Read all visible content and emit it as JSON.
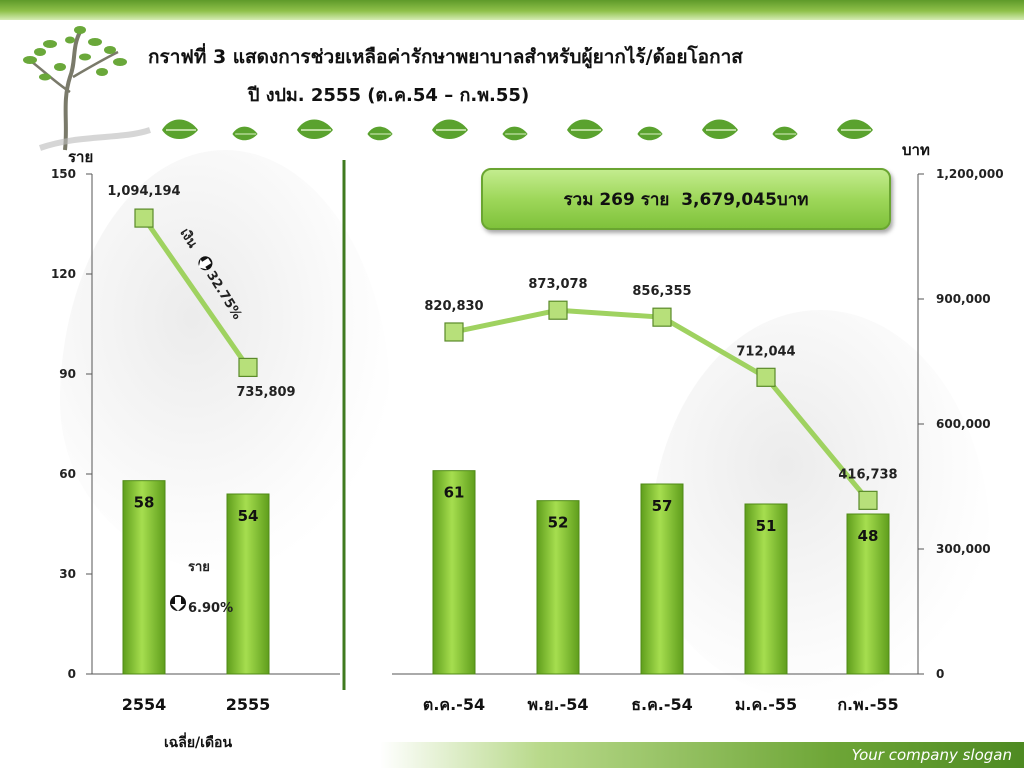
{
  "title": "กราฟที่ 3  แสดงการช่วยเหลือค่ารักษาพยาบาลสำหรับผู้ยากไร้/ด้อยโอกาส",
  "subtitle": "ปี งปม. 2555 (ต.ค.54 – ก.พ.55)",
  "total_box": "รวม 269 ราย  3,679,045บาท",
  "slogan": "Your company slogan",
  "colors": {
    "bar": "#7cc02e",
    "line": "#9fd260",
    "marker": "#b7e07a",
    "divider": "#3f7a1f",
    "leaf": "#5aa22e"
  },
  "chart_data": [
    {
      "type": "bar+line",
      "ylabel_left": "ราย",
      "ylabel_right": "บาท",
      "xlabel": "เฉลี่ย/เดือน",
      "y_left_ticks": [
        "0",
        "30",
        "60",
        "90",
        "120",
        "150"
      ],
      "y_left_range": [
        0,
        150
      ],
      "y_right_range": [
        0,
        1200000
      ],
      "categories": [
        "2554",
        "2555"
      ],
      "series": [
        {
          "name": "ราย",
          "type": "bar",
          "axis": "left",
          "values": [
            58,
            54
          ],
          "labels": [
            "58",
            "54"
          ]
        },
        {
          "name": "เงิน",
          "type": "line",
          "axis": "right",
          "values": [
            1094194,
            735809
          ],
          "labels": [
            "1,094,194",
            "735,809"
          ]
        }
      ],
      "annotations": [
        {
          "series": "เงิน",
          "text": "เงิน",
          "icon": "down-arrow-icon",
          "change": "32.75%"
        },
        {
          "series": "ราย",
          "text": "ราย",
          "icon": "down-arrow-icon",
          "change": "6.90%"
        }
      ]
    },
    {
      "type": "bar+line",
      "ylabel_left": "ราย",
      "ylabel_right": "บาท",
      "y_right_ticks": [
        "0",
        "300,000",
        "600,000",
        "900,000",
        "1,200,000"
      ],
      "y_left_range": [
        0,
        150
      ],
      "y_right_range": [
        0,
        1200000
      ],
      "categories": [
        "ต.ค.-54",
        "พ.ย.-54",
        "ธ.ค.-54",
        "ม.ค.-55",
        "ก.พ.-55"
      ],
      "series": [
        {
          "name": "ราย",
          "type": "bar",
          "axis": "left",
          "values": [
            61,
            52,
            57,
            51,
            48
          ],
          "labels": [
            "61",
            "52",
            "57",
            "51",
            "48"
          ]
        },
        {
          "name": "บาท",
          "type": "line",
          "axis": "right",
          "values": [
            820830,
            873078,
            856355,
            712044,
            416738
          ],
          "labels": [
            "820,830",
            "873,078",
            "856,355",
            "712,044",
            "416,738"
          ]
        }
      ]
    }
  ]
}
